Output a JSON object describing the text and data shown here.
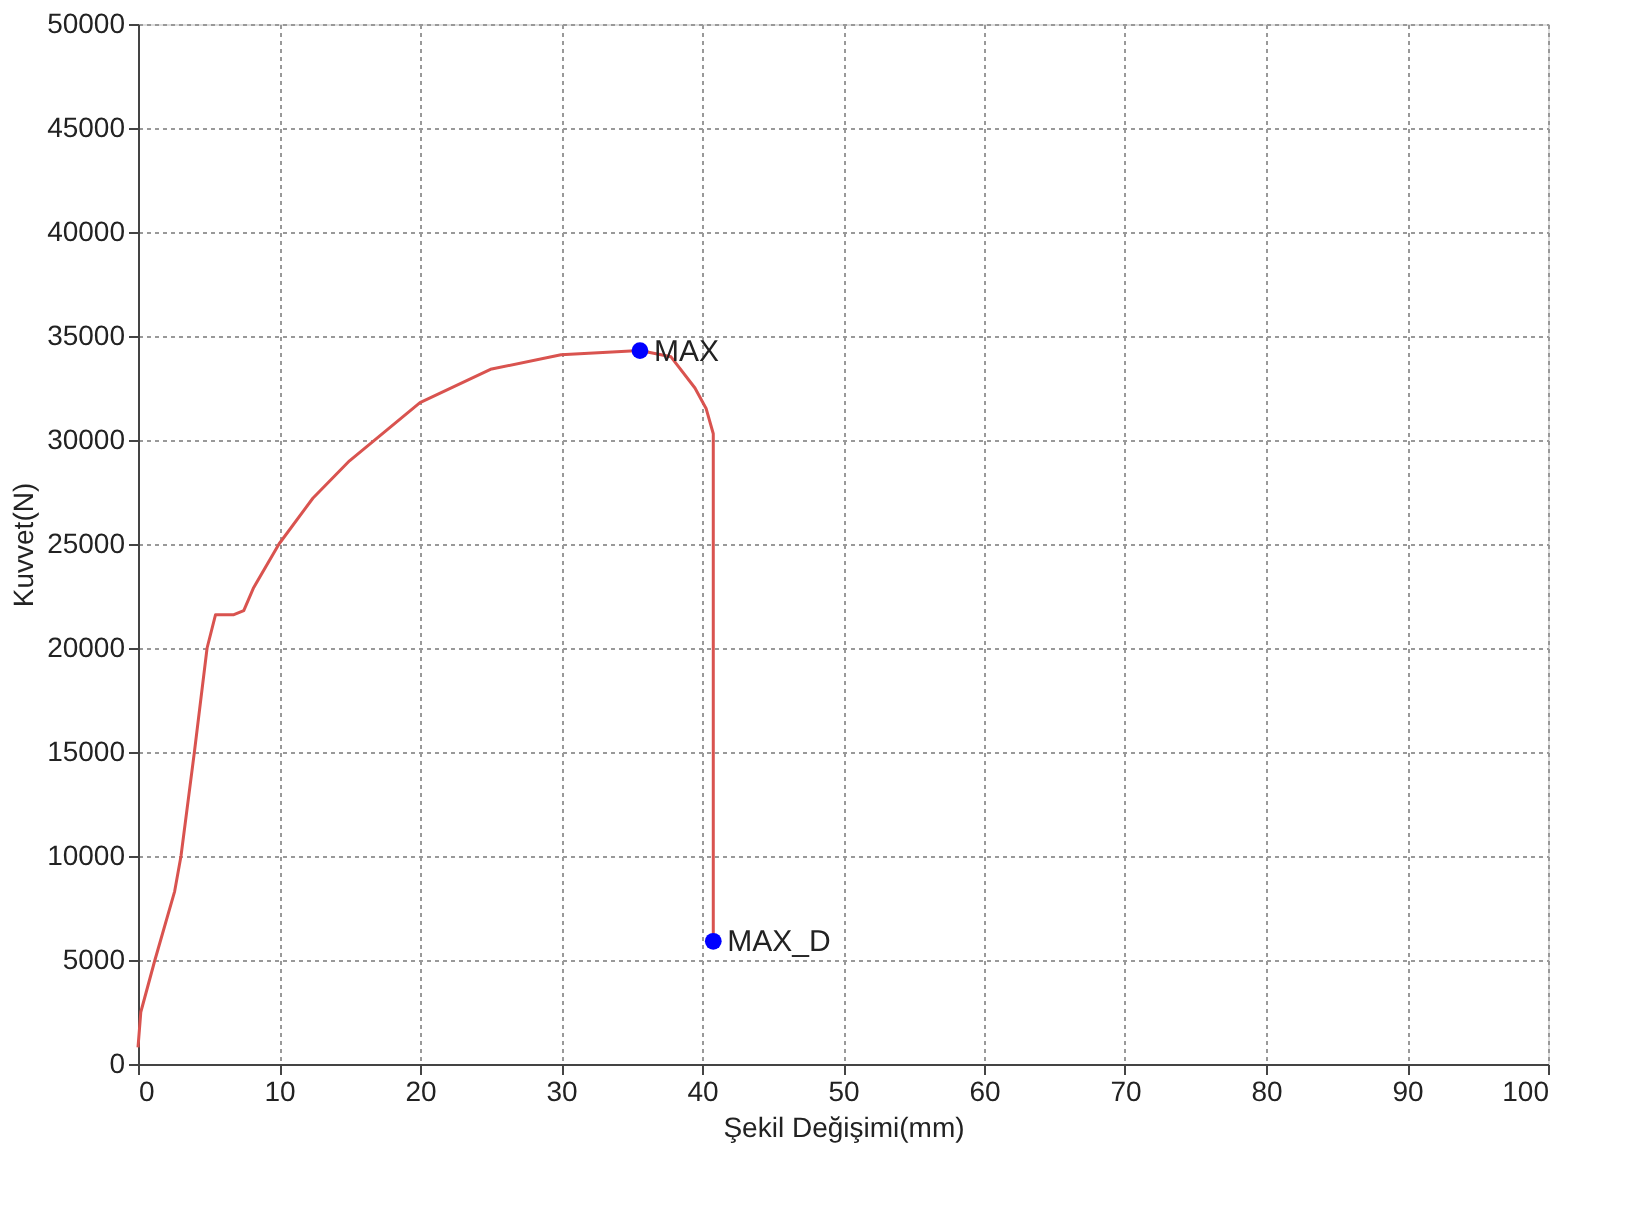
{
  "chart_data": {
    "type": "line",
    "xlabel": "Şekil Değişimi(mm)",
    "ylabel": "Kuvvet(N)",
    "xlim": [
      0,
      100
    ],
    "xticks": [
      0,
      10,
      20,
      30,
      40,
      50,
      60,
      70,
      80,
      90,
      100
    ],
    "ylim": [
      0,
      50000
    ],
    "yticks": [
      0,
      5000,
      10000,
      15000,
      20000,
      25000,
      30000,
      35000,
      40000,
      45000,
      50000
    ],
    "grid": true,
    "line_style": "solid",
    "marker": "none",
    "series": [
      {
        "color": "#d9534f",
        "x": [
          0,
          0.2,
          1.2,
          2.6,
          3.05,
          4.0,
          4.9,
          5.5,
          6.8,
          7.5,
          8.2,
          10,
          12.4,
          15,
          20,
          25,
          30,
          35.6,
          37.8,
          39.5,
          40.3,
          40.8,
          40.8
        ],
        "values": [
          800,
          2500,
          5000,
          8300,
          10000,
          15000,
          20000,
          21600,
          21600,
          21800,
          22900,
          25000,
          27200,
          29000,
          31800,
          33400,
          34100,
          34300,
          34000,
          32500,
          31500,
          30300,
          5900
        ]
      },
      {
        "type": "scatter",
        "color": "#0000ff",
        "marker": "circle",
        "x": [
          35.6,
          40.8
        ],
        "values": [
          34300,
          5900
        ]
      }
    ],
    "annotations": [
      {
        "text": "MAX",
        "x": 35.6,
        "y": 34300
      },
      {
        "text": "MAX_D",
        "x": 40.8,
        "y": 5900
      }
    ]
  }
}
